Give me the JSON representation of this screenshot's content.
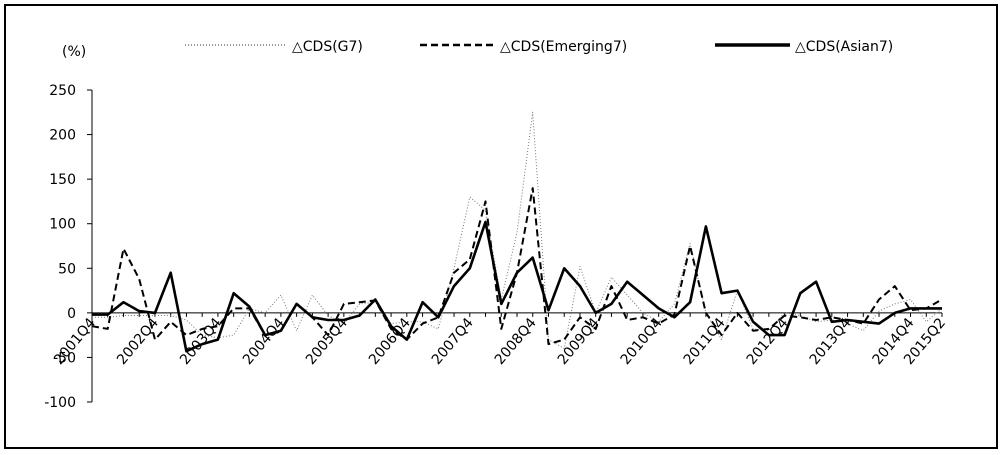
{
  "chart_data": {
    "type": "line",
    "ylabel": "(%)",
    "ylim": [
      -100,
      250
    ],
    "yticks": [
      -100,
      -50,
      0,
      50,
      100,
      150,
      200,
      250
    ],
    "grid": false,
    "legend_position": "top",
    "x": [
      "2001Q4",
      "2002Q1",
      "2002Q2",
      "2002Q3",
      "2002Q4",
      "2003Q1",
      "2003Q2",
      "2003Q3",
      "2003Q4",
      "2004Q1",
      "2004Q2",
      "2004Q3",
      "2004Q4",
      "2005Q1",
      "2005Q2",
      "2005Q3",
      "2005Q4",
      "2006Q1",
      "2006Q2",
      "2006Q3",
      "2006Q4",
      "2007Q1",
      "2007Q2",
      "2007Q3",
      "2007Q4",
      "2008Q1",
      "2008Q2",
      "2008Q3",
      "2008Q4",
      "2009Q1",
      "2009Q2",
      "2009Q3",
      "2009Q4",
      "2010Q1",
      "2010Q2",
      "2010Q3",
      "2010Q4",
      "2011Q1",
      "2011Q2",
      "2011Q3",
      "2011Q4",
      "2012Q1",
      "2012Q2",
      "2012Q3",
      "2012Q4",
      "2013Q1",
      "2013Q2",
      "2013Q3",
      "2013Q4",
      "2014Q1",
      "2014Q2",
      "2014Q3",
      "2014Q4",
      "2015Q1",
      "2015Q2"
    ],
    "x_tick_labels": [
      {
        "label": "2001Q4",
        "index": 0
      },
      {
        "label": "2002Q4",
        "index": 4
      },
      {
        "label": "2003Q4",
        "index": 8
      },
      {
        "label": "2004Q4",
        "index": 12
      },
      {
        "label": "2005Q4",
        "index": 16
      },
      {
        "label": "2006Q4",
        "index": 20
      },
      {
        "label": "2007Q4",
        "index": 24
      },
      {
        "label": "2008Q4",
        "index": 28
      },
      {
        "label": "2009Q4",
        "index": 32
      },
      {
        "label": "2010Q4",
        "index": 36
      },
      {
        "label": "2011Q4",
        "index": 40
      },
      {
        "label": "2012Q4",
        "index": 44
      },
      {
        "label": "2013Q4",
        "index": 48
      },
      {
        "label": "2014Q4",
        "index": 52
      },
      {
        "label": "2015Q2",
        "index": 54
      }
    ],
    "series": [
      {
        "name": "△CDS(G7)",
        "style": "dotted",
        "color": "#777777",
        "values": [
          -5,
          -5,
          -3,
          -3,
          -3,
          -3,
          -8,
          -25,
          -28,
          -25,
          5,
          0,
          20,
          -20,
          20,
          -3,
          -12,
          10,
          12,
          -12,
          -10,
          -10,
          -18,
          50,
          130,
          115,
          15,
          90,
          225,
          -30,
          -40,
          52,
          0,
          40,
          20,
          0,
          -10,
          10,
          78,
          0,
          -30,
          25,
          -18,
          -20,
          0,
          -3,
          -10,
          -8,
          -12,
          -20,
          2,
          10,
          15,
          -10,
          5
        ]
      },
      {
        "name": "△CDS(Emerging7)",
        "style": "dashed",
        "color": "#000000",
        "values": [
          -15,
          -18,
          72,
          38,
          -30,
          -10,
          -25,
          -18,
          -15,
          5,
          5,
          -25,
          -20,
          10,
          -5,
          -25,
          10,
          12,
          14,
          -18,
          -30,
          -12,
          -5,
          45,
          60,
          125,
          -18,
          45,
          140,
          -35,
          -30,
          -5,
          -18,
          30,
          -8,
          -5,
          -12,
          -2,
          75,
          0,
          -25,
          0,
          -20,
          -18,
          -3,
          -5,
          -8,
          -5,
          -8,
          -12,
          15,
          30,
          3,
          5,
          15
        ]
      },
      {
        "name": "△CDS(Asian7)",
        "style": "solid",
        "color": "#000000",
        "values": [
          -2,
          -2,
          12,
          2,
          0,
          45,
          -43,
          -35,
          -30,
          22,
          7,
          -25,
          -20,
          10,
          -5,
          -8,
          -8,
          -3,
          15,
          -15,
          -30,
          12,
          -5,
          30,
          50,
          102,
          10,
          45,
          62,
          3,
          50,
          30,
          0,
          10,
          35,
          20,
          5,
          -5,
          12,
          97,
          22,
          25,
          -10,
          -25,
          -25,
          22,
          35,
          -10,
          -8,
          -10,
          -12,
          0,
          5,
          5,
          5
        ]
      }
    ]
  }
}
